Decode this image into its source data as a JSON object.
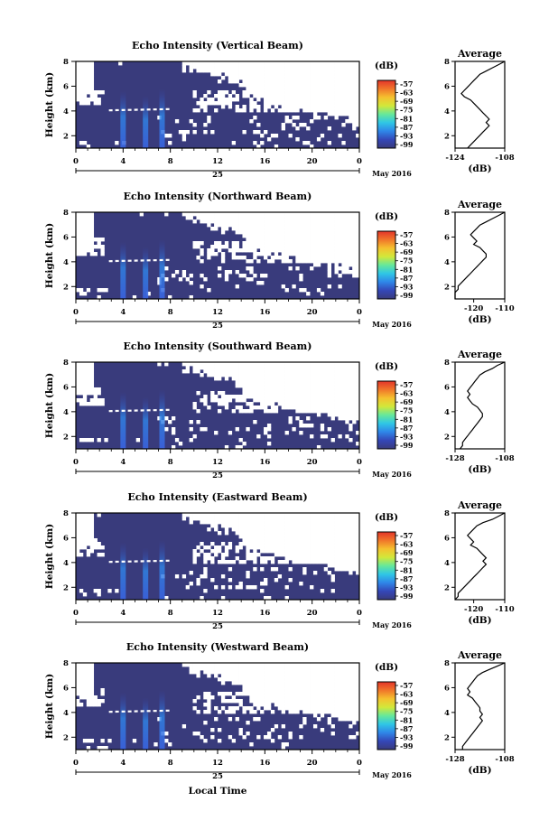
{
  "figure": {
    "xlabel": "Local Time",
    "date_label": "May 2016",
    "day_label": "25",
    "colorbar_unit": "(dB)",
    "colorbar_ticks": [
      "-57",
      "-63",
      "-69",
      "-75",
      "-81",
      "-87",
      "-93",
      "-99"
    ],
    "colorbar_colors": [
      "#393b7c",
      "#3447b8",
      "#2f86e8",
      "#2fc6e6",
      "#66e89a",
      "#d2e83a",
      "#f5c12f",
      "#f0762a",
      "#e3352a"
    ],
    "background_color": "#393b7c"
  },
  "chart_data": [
    {
      "type": "heatmap",
      "title": "Echo Intensity (Vertical Beam)",
      "ylabel": "Height (km)",
      "xlim": [
        0,
        24
      ],
      "ylim": [
        1,
        8
      ],
      "xticks": [
        "0",
        "4",
        "8",
        "12",
        "16",
        "20",
        "0"
      ],
      "yticks": [
        "2",
        "4",
        "6",
        "8"
      ],
      "profile": {
        "title": "Average",
        "xlabel": "(dB)",
        "xlim": [
          -124,
          -108
        ],
        "xticks": [
          "-124",
          "-108"
        ],
        "ylim": [
          1,
          8
        ],
        "yticks": [
          "2",
          "4",
          "6",
          "8"
        ],
        "values": [
          -108,
          -110,
          -112,
          -114,
          -116,
          -117,
          -118,
          -119,
          -120,
          -121,
          -122,
          -121,
          -119,
          -118,
          -117,
          -116,
          -115,
          -114,
          -113,
          -114,
          -113,
          -114,
          -115,
          -116,
          -117,
          -118,
          -119,
          -120
        ]
      }
    },
    {
      "type": "heatmap",
      "title": "Echo Intensity (Northward Beam)",
      "ylabel": "Height (km)",
      "xlim": [
        0,
        24
      ],
      "ylim": [
        1,
        8
      ],
      "xticks": [
        "0",
        "4",
        "8",
        "12",
        "16",
        "20",
        "0"
      ],
      "yticks": [
        "2",
        "4",
        "6",
        "8"
      ],
      "profile": {
        "title": "Average",
        "xlabel": "(dB)",
        "xlim": [
          -126,
          -110
        ],
        "xticks": [
          "-120",
          "-110"
        ],
        "ylim": [
          1,
          8
        ],
        "yticks": [
          "2",
          "4",
          "6",
          "8"
        ],
        "values": [
          -110,
          -112,
          -114,
          -116,
          -118,
          -119,
          -120,
          -121,
          -120,
          -119,
          -120,
          -118,
          -117,
          -116,
          -116,
          -117,
          -118,
          -119,
          -120,
          -121,
          -122,
          -123,
          -124,
          -125,
          -125,
          -126,
          -126,
          -126
        ]
      }
    },
    {
      "type": "heatmap",
      "title": "Echo Intensity (Southward Beam)",
      "ylabel": "Height (km)",
      "xlim": [
        0,
        24
      ],
      "ylim": [
        1,
        8
      ],
      "xticks": [
        "0",
        "4",
        "8",
        "12",
        "16",
        "20",
        "0"
      ],
      "yticks": [
        "2",
        "4",
        "6",
        "8"
      ],
      "profile": {
        "title": "Average",
        "xlabel": "(dB)",
        "xlim": [
          -128,
          -108
        ],
        "xticks": [
          "-128",
          "-108"
        ],
        "ylim": [
          1,
          8
        ],
        "yticks": [
          "2",
          "4",
          "6",
          "8"
        ],
        "values": [
          -108,
          -111,
          -113,
          -116,
          -118,
          -119,
          -120,
          -121,
          -122,
          -123,
          -122,
          -123,
          -122,
          -121,
          -119,
          -118,
          -117,
          -117,
          -118,
          -119,
          -120,
          -121,
          -122,
          -123,
          -124,
          -125,
          -125,
          -126
        ]
      }
    },
    {
      "type": "heatmap",
      "title": "Echo Intensity (Eastward Beam)",
      "ylabel": "Height (km)",
      "xlim": [
        0,
        24
      ],
      "ylim": [
        1,
        8
      ],
      "xticks": [
        "0",
        "4",
        "8",
        "12",
        "16",
        "20",
        "0"
      ],
      "yticks": [
        "2",
        "4",
        "6",
        "8"
      ],
      "profile": {
        "title": "Average",
        "xlabel": "(dB)",
        "xlim": [
          -126,
          -110
        ],
        "xticks": [
          "-120",
          "-110"
        ],
        "ylim": [
          1,
          8
        ],
        "yticks": [
          "2",
          "4",
          "6",
          "8"
        ],
        "values": [
          -110,
          -112,
          -114,
          -117,
          -119,
          -120,
          -121,
          -122,
          -121,
          -120,
          -121,
          -119,
          -118,
          -117,
          -116,
          -117,
          -116,
          -117,
          -118,
          -119,
          -120,
          -121,
          -122,
          -123,
          -124,
          -125,
          -125,
          -126
        ]
      }
    },
    {
      "type": "heatmap",
      "title": "Echo Intensity (Westward Beam)",
      "ylabel": "Height (km)",
      "xlim": [
        0,
        24
      ],
      "ylim": [
        1,
        8
      ],
      "xticks": [
        "0",
        "4",
        "8",
        "12",
        "16",
        "20",
        "0"
      ],
      "yticks": [
        "2",
        "4",
        "6",
        "8"
      ],
      "profile": {
        "title": "Average",
        "xlabel": "(dB)",
        "xlim": [
          -128,
          -108
        ],
        "xticks": [
          "-128",
          "-108"
        ],
        "ylim": [
          1,
          8
        ],
        "yticks": [
          "2",
          "4",
          "6",
          "8"
        ],
        "values": [
          -108,
          -111,
          -114,
          -117,
          -119,
          -120,
          -121,
          -122,
          -123,
          -122,
          -123,
          -121,
          -120,
          -119,
          -118,
          -118,
          -117,
          -118,
          -117,
          -118,
          -119,
          -120,
          -121,
          -122,
          -123,
          -124,
          -125,
          -125
        ]
      }
    }
  ]
}
